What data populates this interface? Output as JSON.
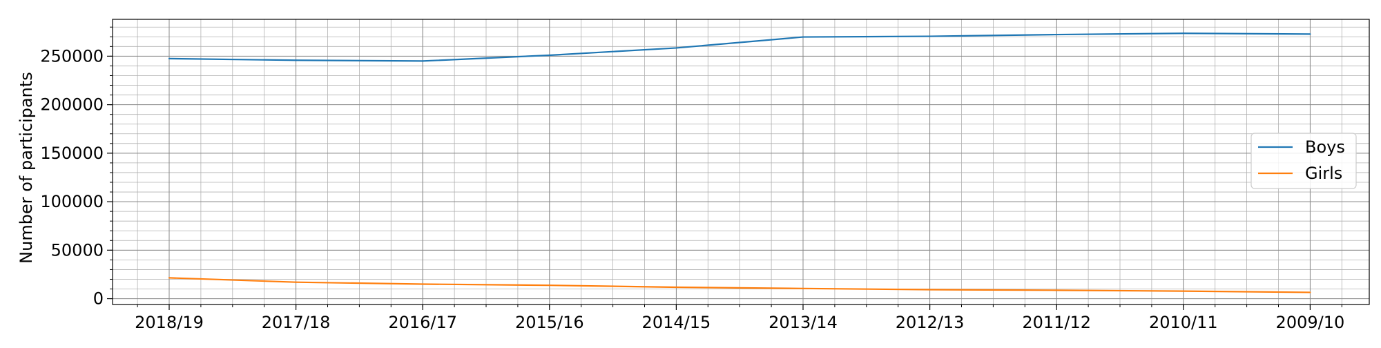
{
  "chart_data": {
    "type": "line",
    "title": "",
    "xlabel": "",
    "ylabel": "Number of participants",
    "categories": [
      "2018/19",
      "2017/18",
      "2016/17",
      "2015/16",
      "2014/15",
      "2013/14",
      "2012/13",
      "2011/12",
      "2010/11",
      "2009/10"
    ],
    "ylim": [
      -6000,
      288000
    ],
    "yticks": [
      0,
      50000,
      100000,
      150000,
      200000,
      250000
    ],
    "grid": true,
    "minor_grid": true,
    "legend_position": "right",
    "series": [
      {
        "name": "Boys",
        "color": "#1f77b4",
        "values": [
          247500,
          245800,
          245000,
          251000,
          258500,
          269800,
          270500,
          272300,
          273600,
          272800
        ]
      },
      {
        "name": "Girls",
        "color": "#ff7f0e",
        "values": [
          21500,
          17000,
          15000,
          13800,
          11800,
          10500,
          9300,
          8700,
          7800,
          6500
        ]
      }
    ]
  }
}
